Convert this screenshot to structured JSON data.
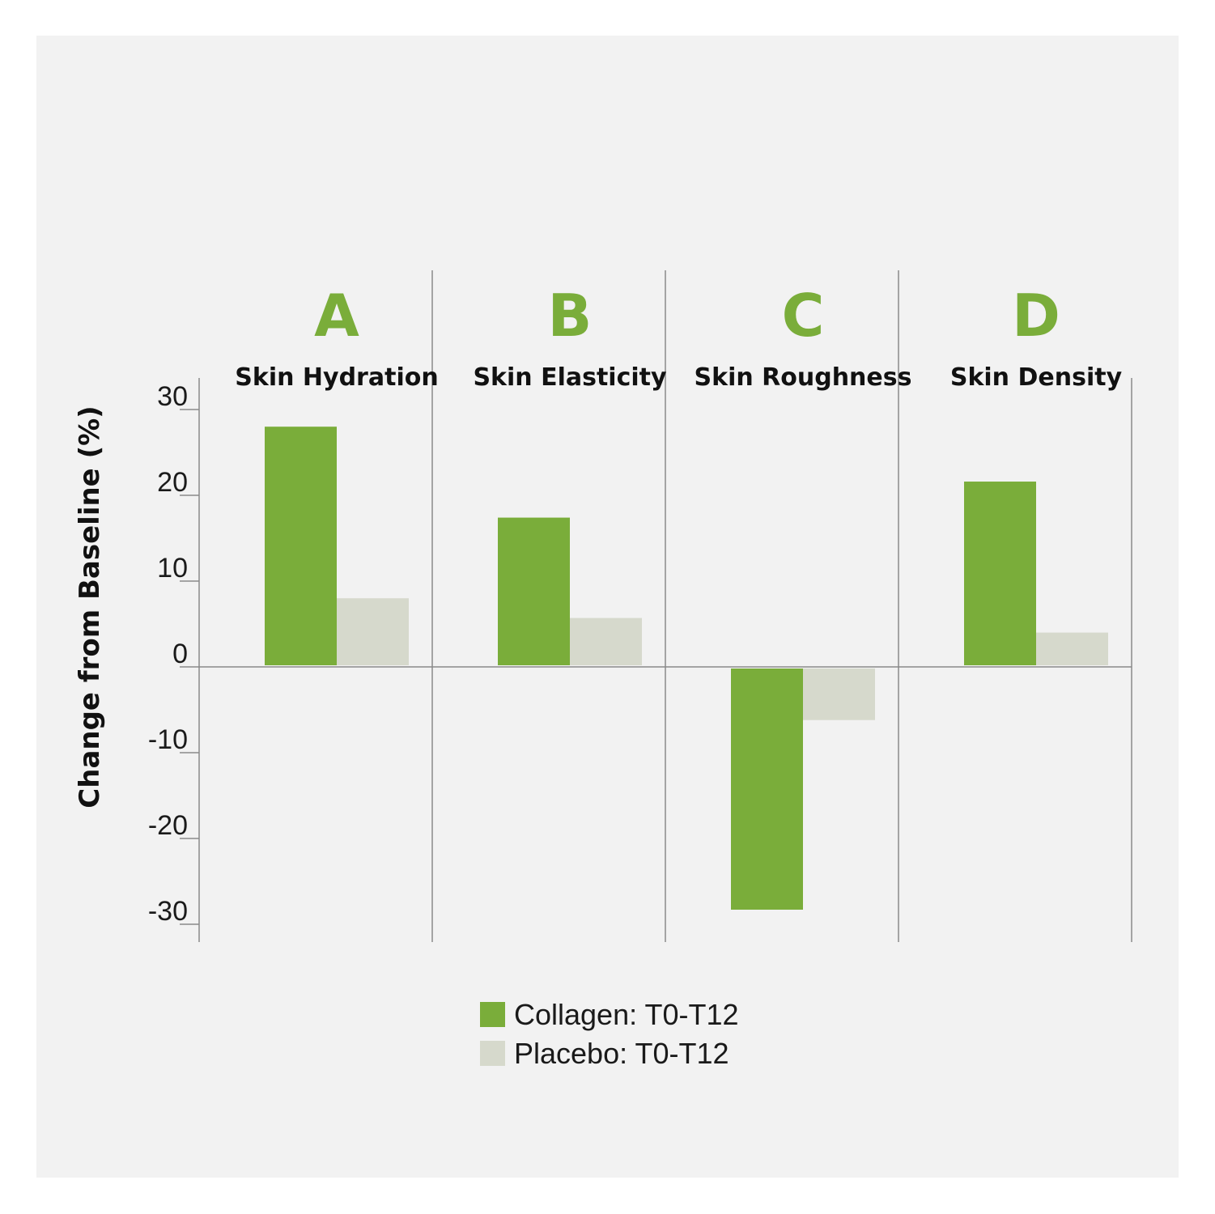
{
  "chart_data": {
    "type": "bar",
    "title": "",
    "xlabel": "",
    "ylabel": "Change from Baseline (%)",
    "ylim": [
      -32,
      33
    ],
    "yticks": [
      30,
      20,
      10,
      0,
      -10,
      -20,
      -30
    ],
    "ytick_labels": [
      "30",
      "20",
      "10",
      "0",
      "-10",
      "-20",
      "-30"
    ],
    "grid": false,
    "legend_position": "bottom-center",
    "categories": [
      {
        "letter": "A",
        "label": "Skin Hydration"
      },
      {
        "letter": "B",
        "label": "Skin Elasticity"
      },
      {
        "letter": "C",
        "label": "Skin Roughness"
      },
      {
        "letter": "D",
        "label": "Skin Density"
      }
    ],
    "series": [
      {
        "name": "Collagen: T0-T12",
        "color": "#7aad3a",
        "values": [
          28,
          17.4,
          -28.3,
          21.6
        ]
      },
      {
        "name": "Placebo: T0-T12",
        "color": "#d6d9cc",
        "values": [
          8,
          5.7,
          -6.2,
          4
        ]
      }
    ],
    "letter_color": "#7aad3a"
  }
}
